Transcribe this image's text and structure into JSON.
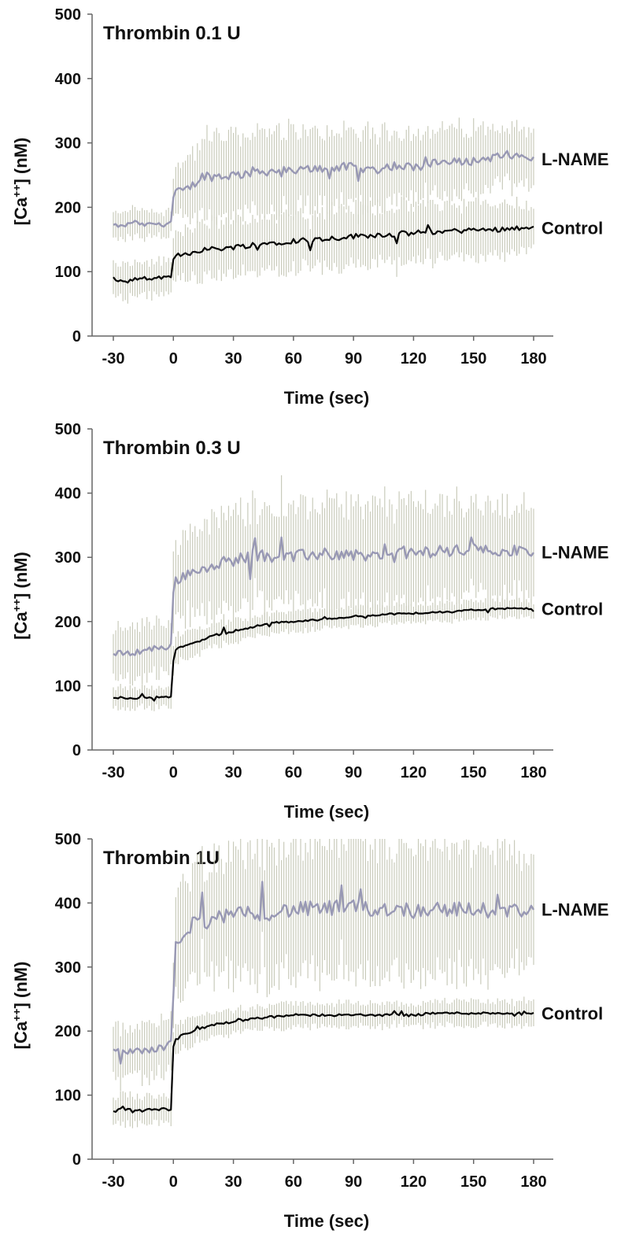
{
  "chart_data": [
    {
      "type": "line",
      "title": "Thrombin 0.1 U",
      "xlabel": "Time (sec)",
      "ylabel": {
        "base": "[Ca",
        "sup": "++",
        "rest": "] (nM)"
      },
      "xlim": [
        -30,
        180
      ],
      "ylim": [
        0,
        500
      ],
      "xticks": [
        "-30",
        "0",
        "30",
        "60",
        "90",
        "120",
        "150",
        "180"
      ],
      "yticks": [
        "0",
        "100",
        "200",
        "300",
        "400",
        "500"
      ],
      "error_bars": true,
      "series": [
        {
          "name": "L-NAME",
          "color": "#9898b4",
          "x": [
            -30,
            -25,
            -20,
            -15,
            -10,
            -5,
            -1,
            0,
            1,
            5,
            10,
            15,
            20,
            30,
            40,
            50,
            60,
            70,
            80,
            90,
            100,
            110,
            120,
            130,
            140,
            150,
            160,
            170,
            180
          ],
          "y": [
            172,
            170,
            178,
            172,
            175,
            172,
            178,
            215,
            225,
            225,
            235,
            250,
            248,
            250,
            255,
            257,
            255,
            260,
            262,
            262,
            258,
            265,
            262,
            268,
            270,
            272,
            278,
            280,
            275
          ],
          "err": [
            18,
            20,
            22,
            20,
            20,
            18,
            20,
            28,
            35,
            45,
            50,
            55,
            60,
            60,
            60,
            58,
            60,
            55,
            55,
            55,
            55,
            55,
            50,
            50,
            50,
            48,
            48,
            45,
            40
          ]
        },
        {
          "name": "Control",
          "color": "#000000",
          "x": [
            -30,
            -25,
            -20,
            -15,
            -10,
            -5,
            -1,
            0,
            1,
            5,
            10,
            15,
            20,
            30,
            40,
            50,
            60,
            70,
            80,
            90,
            100,
            110,
            120,
            130,
            140,
            150,
            160,
            170,
            180
          ],
          "y": [
            90,
            83,
            88,
            90,
            88,
            92,
            90,
            118,
            125,
            127,
            130,
            135,
            135,
            138,
            142,
            145,
            148,
            150,
            152,
            155,
            157,
            158,
            160,
            162,
            163,
            165,
            165,
            168,
            168
          ],
          "err": [
            22,
            25,
            25,
            25,
            25,
            25,
            25,
            30,
            32,
            35,
            38,
            40,
            40,
            40,
            42,
            42,
            42,
            42,
            42,
            42,
            42,
            42,
            42,
            42,
            40,
            40,
            40,
            38,
            35
          ]
        }
      ]
    },
    {
      "type": "line",
      "title": "Thrombin 0.3 U",
      "xlabel": "Time (sec)",
      "ylabel": {
        "base": "[Ca",
        "sup": "++",
        "rest": "] (nM)"
      },
      "xlim": [
        -30,
        180
      ],
      "ylim": [
        0,
        500
      ],
      "xticks": [
        "-30",
        "0",
        "30",
        "60",
        "90",
        "120",
        "150",
        "180"
      ],
      "yticks": [
        "0",
        "100",
        "200",
        "300",
        "400",
        "500"
      ],
      "error_bars": true,
      "series": [
        {
          "name": "L-NAME",
          "color": "#9898b4",
          "x": [
            -30,
            -25,
            -20,
            -15,
            -10,
            -5,
            -1,
            0,
            1,
            5,
            10,
            15,
            20,
            30,
            40,
            50,
            60,
            70,
            80,
            90,
            100,
            110,
            120,
            130,
            140,
            150,
            160,
            170,
            180
          ],
          "y": [
            150,
            150,
            152,
            155,
            158,
            160,
            162,
            245,
            262,
            272,
            278,
            282,
            290,
            295,
            305,
            302,
            300,
            305,
            305,
            305,
            300,
            310,
            305,
            310,
            310,
            312,
            312,
            310,
            308
          ],
          "err": [
            35,
            38,
            40,
            40,
            40,
            40,
            42,
            50,
            55,
            60,
            65,
            68,
            70,
            70,
            75,
            75,
            75,
            75,
            75,
            75,
            75,
            75,
            75,
            75,
            72,
            70,
            70,
            70,
            68
          ]
        },
        {
          "name": "Control",
          "color": "#000000",
          "x": [
            -30,
            -25,
            -20,
            -15,
            -10,
            -5,
            -1,
            0,
            1,
            5,
            10,
            15,
            20,
            30,
            40,
            50,
            60,
            70,
            80,
            90,
            100,
            110,
            120,
            130,
            140,
            150,
            160,
            170,
            180
          ],
          "y": [
            80,
            82,
            80,
            82,
            82,
            84,
            82,
            140,
            155,
            162,
            168,
            172,
            178,
            185,
            192,
            198,
            200,
            202,
            205,
            208,
            210,
            212,
            212,
            215,
            215,
            218,
            220,
            220,
            220
          ],
          "err": [
            15,
            16,
            16,
            16,
            15,
            15,
            15,
            20,
            20,
            20,
            20,
            20,
            18,
            18,
            15,
            15,
            15,
            15,
            14,
            14,
            14,
            14,
            14,
            14,
            14,
            14,
            13,
            13,
            12
          ]
        }
      ]
    },
    {
      "type": "line",
      "title": "Thrombin 1U",
      "xlabel": "Time (sec)",
      "ylabel": {
        "base": "[Ca",
        "sup": "++",
        "rest": "] (nM)"
      },
      "xlim": [
        -30,
        180
      ],
      "ylim": [
        0,
        500
      ],
      "xticks": [
        "-30",
        "0",
        "30",
        "60",
        "90",
        "120",
        "150",
        "180"
      ],
      "yticks": [
        "0",
        "100",
        "200",
        "300",
        "400",
        "500"
      ],
      "error_bars": true,
      "series": [
        {
          "name": "L-NAME",
          "color": "#9898b4",
          "x": [
            -30,
            -25,
            -20,
            -15,
            -10,
            -5,
            -1,
            0,
            1,
            5,
            10,
            15,
            20,
            30,
            40,
            50,
            60,
            70,
            80,
            90,
            100,
            110,
            120,
            130,
            140,
            150,
            160,
            170,
            180
          ],
          "y": [
            172,
            165,
            170,
            168,
            172,
            175,
            180,
            260,
            330,
            350,
            370,
            370,
            375,
            380,
            385,
            385,
            390,
            390,
            392,
            392,
            390,
            392,
            388,
            392,
            390,
            390,
            388,
            388,
            390
          ],
          "err": [
            35,
            38,
            40,
            40,
            40,
            40,
            42,
            60,
            70,
            80,
            85,
            90,
            90,
            95,
            95,
            95,
            95,
            95,
            95,
            95,
            95,
            95,
            95,
            90,
            90,
            90,
            90,
            85,
            85
          ]
        },
        {
          "name": "Control",
          "color": "#000000",
          "x": [
            -30,
            -25,
            -20,
            -15,
            -10,
            -5,
            -1,
            0,
            1,
            5,
            10,
            15,
            20,
            30,
            40,
            50,
            60,
            70,
            80,
            90,
            100,
            110,
            120,
            130,
            140,
            150,
            160,
            170,
            180
          ],
          "y": [
            75,
            78,
            76,
            75,
            78,
            78,
            75,
            175,
            185,
            195,
            200,
            205,
            210,
            215,
            220,
            222,
            225,
            225,
            225,
            225,
            225,
            225,
            225,
            228,
            228,
            228,
            228,
            228,
            228
          ],
          "err": [
            20,
            22,
            22,
            22,
            22,
            22,
            22,
            25,
            22,
            20,
            20,
            18,
            18,
            18,
            18,
            18,
            18,
            18,
            18,
            18,
            18,
            18,
            18,
            18,
            18,
            18,
            18,
            18,
            18
          ]
        }
      ]
    }
  ]
}
